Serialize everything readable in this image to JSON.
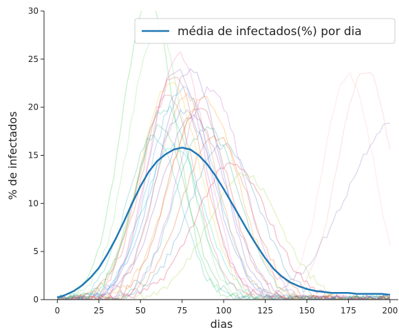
{
  "chart_data": {
    "type": "line",
    "title": "",
    "xlabel": "dias",
    "ylabel": "% de infectados",
    "xlim": [
      -8,
      205
    ],
    "ylim": [
      0,
      30
    ],
    "x_ticks": [
      0,
      25,
      50,
      75,
      100,
      125,
      150,
      175,
      200
    ],
    "y_ticks": [
      0,
      5,
      10,
      15,
      20,
      25,
      30
    ],
    "grid": false,
    "legend": {
      "position": "top-right",
      "entries": [
        "média de infectados(%) por dia"
      ]
    },
    "series": [
      {
        "name": "média de infectados(%) por dia",
        "color": "#1f77b4",
        "x": [
          0,
          5,
          10,
          15,
          20,
          25,
          30,
          35,
          40,
          45,
          50,
          55,
          60,
          65,
          70,
          75,
          80,
          85,
          90,
          95,
          100,
          105,
          110,
          115,
          120,
          125,
          130,
          135,
          140,
          145,
          150,
          155,
          160,
          165,
          170,
          175,
          180,
          185,
          190,
          195,
          200
        ],
        "y": [
          0.2,
          0.5,
          0.9,
          1.5,
          2.3,
          3.3,
          4.7,
          6.3,
          8.1,
          10.0,
          11.8,
          13.3,
          14.4,
          15.1,
          15.6,
          15.8,
          15.6,
          15.0,
          14.1,
          12.9,
          11.5,
          10.0,
          8.5,
          7.0,
          5.6,
          4.3,
          3.2,
          2.4,
          1.8,
          1.4,
          1.1,
          0.9,
          0.8,
          0.7,
          0.7,
          0.7,
          0.6,
          0.6,
          0.6,
          0.6,
          0.5
        ]
      }
    ],
    "simulation_runs_description": "many faint multicolored individual runs behind the mean curve",
    "background_runs": [
      {
        "color": "#2ecc40",
        "peak_x": 55,
        "peak_y": 31,
        "width": 16,
        "start": 0
      },
      {
        "color": "#7fdb7f",
        "peak_x": 60,
        "peak_y": 28,
        "width": 17,
        "start": 0
      },
      {
        "color": "#9b59b6",
        "peak_x": 72,
        "peak_y": 24,
        "width": 17,
        "start": 0
      },
      {
        "color": "#e74c3c",
        "peak_x": 70,
        "peak_y": 23,
        "width": 18,
        "start": 0
      },
      {
        "color": "#3498db",
        "peak_x": 75,
        "peak_y": 22,
        "width": 19,
        "start": 0
      },
      {
        "color": "#e67e22",
        "peak_x": 78,
        "peak_y": 21,
        "width": 18,
        "start": 0
      },
      {
        "color": "#1abc9c",
        "peak_x": 65,
        "peak_y": 20,
        "width": 17,
        "start": 0
      },
      {
        "color": "#f1c40f",
        "peak_x": 68,
        "peak_y": 22.5,
        "width": 18,
        "start": 0
      },
      {
        "color": "#8e44ad",
        "peak_x": 82,
        "peak_y": 19,
        "width": 20,
        "start": 0
      },
      {
        "color": "#c0392b",
        "peak_x": 85,
        "peak_y": 20,
        "width": 18,
        "start": 0
      },
      {
        "color": "#16a085",
        "peak_x": 90,
        "peak_y": 18,
        "width": 19,
        "start": 0
      },
      {
        "color": "#d35400",
        "peak_x": 95,
        "peak_y": 17,
        "width": 20,
        "start": 0
      },
      {
        "color": "#2980b9",
        "peak_x": 100,
        "peak_y": 16,
        "width": 21,
        "start": 0
      },
      {
        "color": "#27ae60",
        "peak_x": 62,
        "peak_y": 18,
        "width": 16,
        "start": 0
      },
      {
        "color": "#ff69b4",
        "peak_x": 73,
        "peak_y": 25.5,
        "width": 17,
        "start": 0
      },
      {
        "color": "#6a5acd",
        "peak_x": 80,
        "peak_y": 24,
        "width": 18,
        "start": 0
      },
      {
        "color": "#20b2aa",
        "peak_x": 58,
        "peak_y": 17,
        "width": 16,
        "start": 0
      },
      {
        "color": "#ff8c00",
        "peak_x": 88,
        "peak_y": 21,
        "width": 20,
        "start": 0
      },
      {
        "color": "#dc143c",
        "peak_x": 105,
        "peak_y": 14,
        "width": 22,
        "start": 0
      },
      {
        "color": "#4169e1",
        "peak_x": 76,
        "peak_y": 19.5,
        "width": 19,
        "start": 0
      },
      {
        "color": "#00ced1",
        "peak_x": 70,
        "peak_y": 16,
        "width": 18,
        "start": 0
      },
      {
        "color": "#9acd32",
        "peak_x": 112,
        "peak_y": 13,
        "width": 22,
        "start": 0
      },
      {
        "color": "#ba55d3",
        "peak_x": 92,
        "peak_y": 22,
        "width": 19,
        "start": 0
      },
      {
        "color": "#cd5c5c",
        "peak_x": 66,
        "peak_y": 21,
        "width": 17,
        "start": 0
      },
      {
        "color": "#ffb6c1",
        "peak_x": 175,
        "peak_y": 23.5,
        "width": 15,
        "start": 125
      },
      {
        "color": "#f4a6a6",
        "peak_x": 185,
        "peak_y": 24,
        "width": 16,
        "start": 135
      },
      {
        "color": "#8a6fb8",
        "peak_x": 205,
        "peak_y": 19,
        "width": 30,
        "start": 100
      }
    ]
  }
}
